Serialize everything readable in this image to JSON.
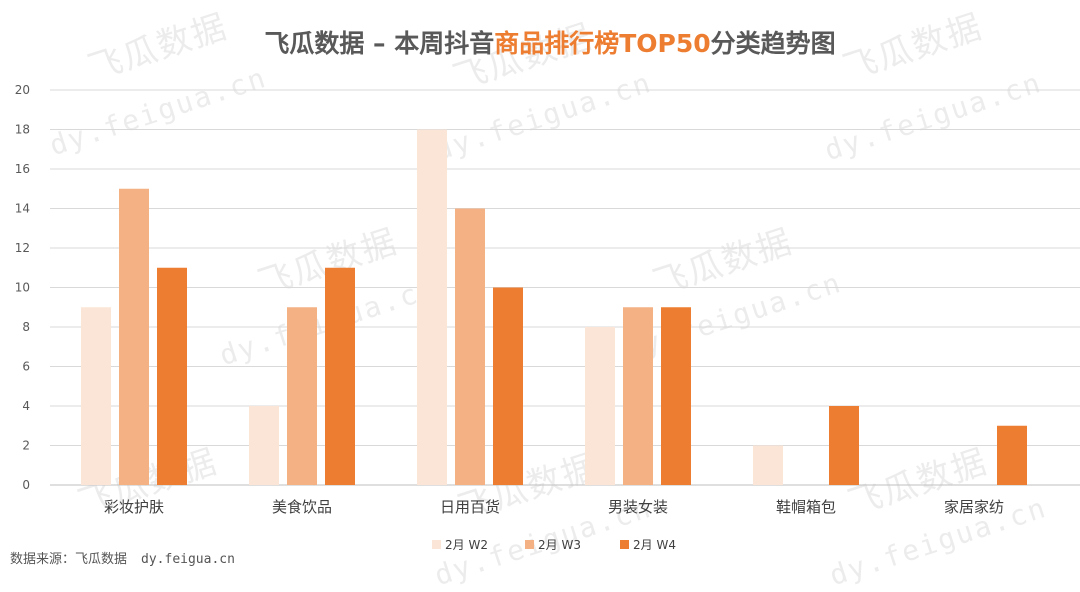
{
  "chart_data": {
    "type": "bar",
    "title_parts": [
      {
        "text": "飞瓜数据 – 本周抖音",
        "color": "#595959"
      },
      {
        "text": "商品排行榜TOP50",
        "color": "#ED7D31"
      },
      {
        "text": "分类趋势图",
        "color": "#595959"
      }
    ],
    "categories": [
      "彩妆护肤",
      "美食饮品",
      "日用百货",
      "男装女装",
      "鞋帽箱包",
      "家居家纺"
    ],
    "series": [
      {
        "name": "2月 W2",
        "color": "#FBE5D6",
        "values": [
          9,
          4,
          18,
          8,
          2,
          0
        ]
      },
      {
        "name": "2月 W3",
        "color": "#F4B183",
        "values": [
          15,
          9,
          14,
          9,
          0,
          0
        ]
      },
      {
        "name": "2月 W4",
        "color": "#ED7D31",
        "values": [
          11,
          11,
          10,
          9,
          4,
          3
        ]
      }
    ],
    "ylim": [
      0,
      20
    ],
    "yticks": [
      0,
      2,
      4,
      6,
      8,
      10,
      12,
      14,
      16,
      18,
      20
    ],
    "grid": true,
    "legend_position": "bottom"
  },
  "watermark": {
    "brand": "飞瓜数据",
    "url": "dy.feigua.cn"
  },
  "source": {
    "label": "数据来源：飞瓜数据",
    "url": "dy.feigua.cn"
  }
}
